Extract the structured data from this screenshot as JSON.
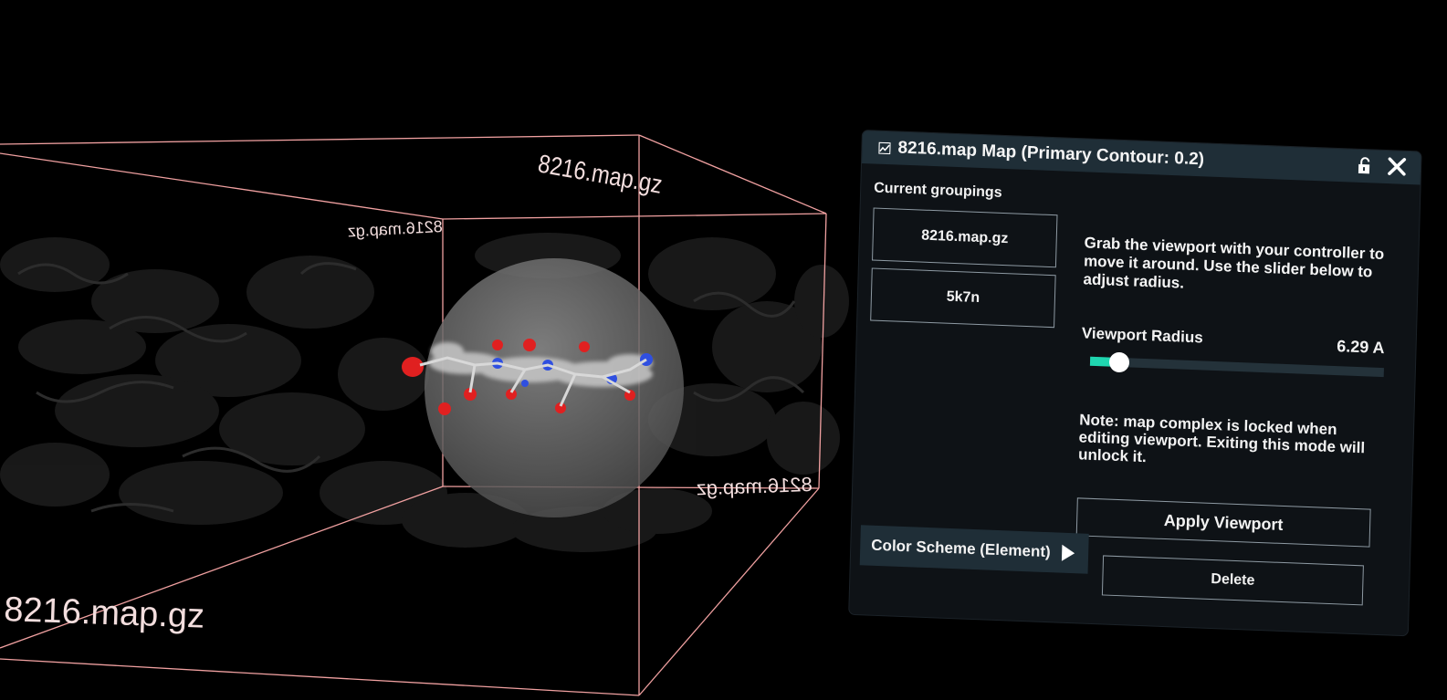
{
  "scene": {
    "box_labels": {
      "top_right": "8216.map.gz",
      "top_left_mirrored": "8216.map.gz",
      "right_mirrored": "8216.map.gz",
      "bottom_left": "8216.map.gz"
    }
  },
  "panel": {
    "title": "8216.map Map (Primary Contour: 0.2)",
    "header_icon": "map-icon",
    "lock_icon": "lock-open-icon",
    "close_icon": "close-icon",
    "groupings_label": "Current groupings",
    "groupings": [
      {
        "label": "8216.map.gz"
      },
      {
        "label": "5k7n"
      }
    ],
    "instructions": "Grab the viewport with your controller to move it around. Use the slider below to adjust radius.",
    "radius_label": "Viewport Radius",
    "radius_value": "6.29 A",
    "radius_fraction": 0.1,
    "slider_accent": "#1fd6b0",
    "note": "Note: map complex is locked when editing viewport. Exiting this mode will unlock it.",
    "apply_label": "Apply Viewport",
    "color_scheme_label": "Color Scheme (Element)",
    "delete_label": "Delete"
  },
  "colors": {
    "background": "#000000",
    "box_edges": "#f0a0a0",
    "panel_bg": "#0e1216",
    "header_bg": "#1f2e37",
    "atom_oxygen": "#e02020",
    "atom_nitrogen": "#2f4fe0",
    "atom_carbon": "#bfbfbf"
  }
}
